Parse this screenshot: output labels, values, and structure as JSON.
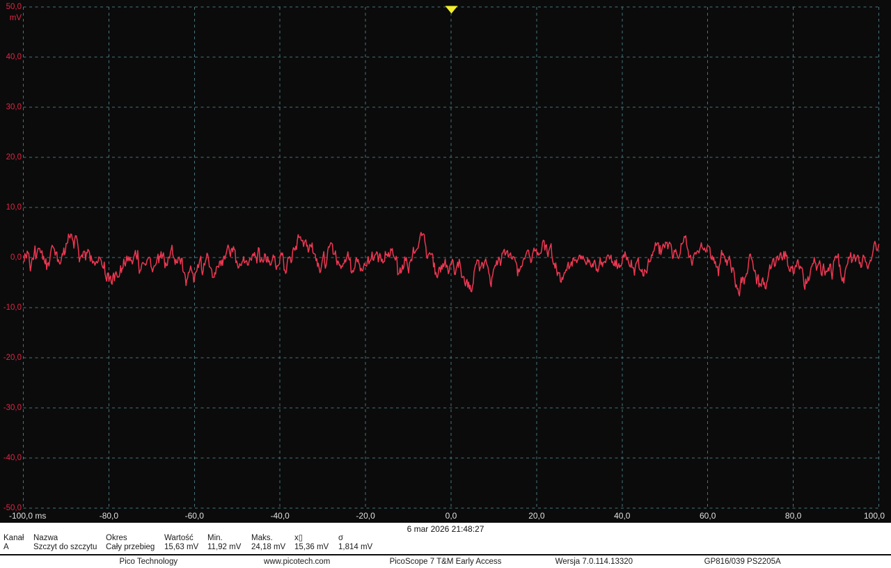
{
  "colors": {
    "background": "#0b0b0b",
    "grid": "#47767e",
    "axis_red": "#e22545",
    "trace_red": "#ee3752",
    "trigger_yellow": "#f2ee2d",
    "x_tick_text": "#e0e0e0",
    "strip_bg": "#ffffff",
    "strip_text": "#1a1a1a"
  },
  "chart": {
    "unit_label": "mV",
    "y_tick_labels": [
      "50,0",
      "40,0",
      "30,0",
      "20,0",
      "10,0",
      "0,0",
      "-10,0",
      "-20,0",
      "-30,0",
      "-40,0",
      "-50,0"
    ],
    "x_tick_labels": [
      "-100,0 ms",
      "-80,0",
      "-60,0",
      "-40,0",
      "-20,0",
      "0,0",
      "20,0",
      "40,0",
      "60,0",
      "80,0",
      "100,0"
    ]
  },
  "chart_data": {
    "type": "line",
    "title": "",
    "xlabel": "ms",
    "ylabel": "mV",
    "xlim": [
      -100,
      100
    ],
    "ylim": [
      -50,
      50
    ],
    "x_tick_values": [
      -100,
      -80,
      -60,
      -40,
      -20,
      0,
      20,
      40,
      60,
      80,
      100
    ],
    "y_tick_values": [
      50,
      40,
      30,
      20,
      10,
      0,
      -10,
      -20,
      -30,
      -40,
      -50
    ],
    "grid": "dashed",
    "legend": "none",
    "trigger": {
      "x_ms": 0,
      "marker": "down-triangle"
    },
    "series": [
      {
        "name": "A",
        "description": "Band-limited random noise centred slightly above 0 mV; mean peak-to-peak 15,36 mV, sigma 1,814 mV, excursions roughly +7 to -9 mV",
        "mean_mv": 0.35,
        "sigma_mv": 1.814,
        "peak_to_peak_mv": 15.63,
        "noise": {
          "seed": 20260306,
          "n": 1100,
          "ar": 0.9,
          "sigma": 0.78,
          "bias": 0.035,
          "clamp": [
            -9.2,
            7.5
          ]
        }
      }
    ]
  },
  "timestamp": "6 mar 2026 21:48:27",
  "measurements": {
    "headers": [
      "Kanał",
      "Nazwa",
      "Okres",
      "Wartość",
      "Min.",
      "Maks.",
      "x▯",
      "σ"
    ],
    "rows": [
      [
        "A",
        "Szczyt do szczytu",
        "Cały przebieg",
        "15,63 mV",
        "11,92 mV",
        "24,18 mV",
        "15,36 mV",
        "1,814 mV"
      ]
    ]
  },
  "footer": {
    "items": [
      "Pico Technology",
      "www.picotech.com",
      "PicoScope 7 T&M Early Access",
      "Wersja 7.0.114.13320",
      "GP816/039 PS2205A"
    ]
  }
}
